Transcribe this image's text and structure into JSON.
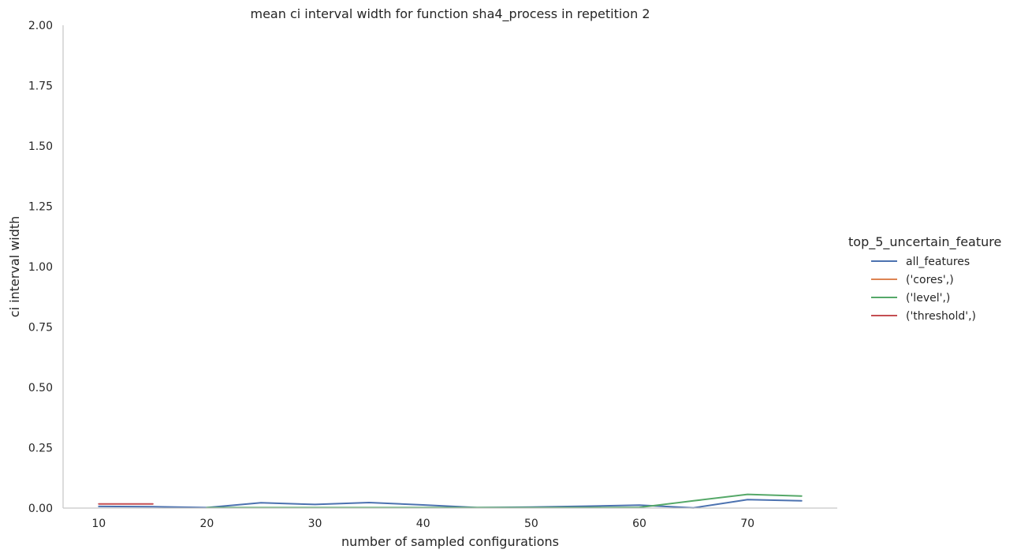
{
  "chart_data": {
    "type": "line",
    "title": "mean ci interval width for function sha4_process in repetition 2",
    "xlabel": "number of sampled configurations",
    "ylabel": "ci interval width",
    "xlim": [
      6.7,
      78.3
    ],
    "ylim": [
      0,
      2.0
    ],
    "xticks": [
      10,
      20,
      30,
      40,
      50,
      60,
      70
    ],
    "xtick_labels": [
      "10",
      "20",
      "30",
      "40",
      "50",
      "60",
      "70"
    ],
    "yticks": [
      0.0,
      0.25,
      0.5,
      0.75,
      1.0,
      1.25,
      1.5,
      1.75,
      2.0
    ],
    "ytick_labels": [
      "0.00",
      "0.25",
      "0.50",
      "0.75",
      "1.00",
      "1.25",
      "1.50",
      "1.75",
      "2.00"
    ],
    "grid": false,
    "legend": {
      "title": "top_5_uncertain_feature",
      "placement": "right"
    },
    "series": [
      {
        "name": "all_features",
        "color": "#4c72b0",
        "x": [
          10,
          15,
          20,
          25,
          30,
          35,
          40,
          45,
          50,
          55,
          60,
          65,
          70,
          75
        ],
        "y": [
          0.007,
          0.006,
          0.002,
          0.022,
          0.015,
          0.023,
          0.013,
          0.002,
          0.004,
          0.008,
          0.012,
          0.001,
          0.035,
          0.03
        ]
      },
      {
        "name": "('cores',)",
        "color": "#dd8452",
        "x": [],
        "y": []
      },
      {
        "name": "('level',)",
        "color": "#55a868",
        "x": [
          20,
          25,
          30,
          35,
          40,
          45,
          50,
          55,
          60,
          65,
          70,
          75
        ],
        "y": [
          0.002,
          0.002,
          0.002,
          0.002,
          0.002,
          0.002,
          0.002,
          0.002,
          0.003,
          0.03,
          0.057,
          0.05
        ]
      },
      {
        "name": "('threshold',)",
        "color": "#c44e52",
        "x": [
          10,
          15
        ],
        "y": [
          0.017,
          0.017
        ]
      }
    ]
  }
}
